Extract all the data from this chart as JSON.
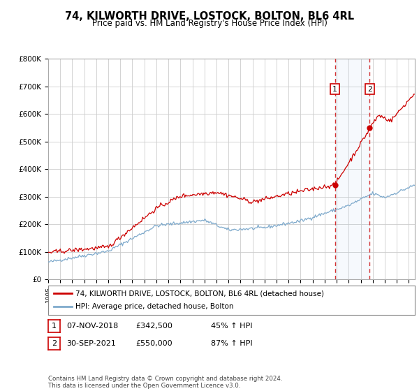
{
  "title": "74, KILWORTH DRIVE, LOSTOCK, BOLTON, BL6 4RL",
  "subtitle": "Price paid vs. HM Land Registry's House Price Index (HPI)",
  "legend_label_red": "74, KILWORTH DRIVE, LOSTOCK, BOLTON, BL6 4RL (detached house)",
  "legend_label_blue": "HPI: Average price, detached house, Bolton",
  "annotation1_date": "07-NOV-2018",
  "annotation1_price": "£342,500",
  "annotation1_hpi": "45% ↑ HPI",
  "annotation2_date": "30-SEP-2021",
  "annotation2_price": "£550,000",
  "annotation2_hpi": "87% ↑ HPI",
  "footer": "Contains HM Land Registry data © Crown copyright and database right 2024.\nThis data is licensed under the Open Government Licence v3.0.",
  "ylim": [
    0,
    800000
  ],
  "yticks": [
    0,
    100000,
    200000,
    300000,
    400000,
    500000,
    600000,
    700000,
    800000
  ],
  "ytick_labels": [
    "£0",
    "£100K",
    "£200K",
    "£300K",
    "£400K",
    "£500K",
    "£600K",
    "£700K",
    "£800K"
  ],
  "xlim_start": 1995.0,
  "xlim_end": 2025.5,
  "background_color": "#ffffff",
  "plot_bg_color": "#ffffff",
  "grid_color": "#cccccc",
  "red_color": "#cc0000",
  "blue_color": "#7faacc",
  "vline1_x": 2018.85,
  "vline2_x": 2021.75,
  "point1_x": 2018.85,
  "point1_y": 342500,
  "point2_x": 2021.75,
  "point2_y": 550000
}
